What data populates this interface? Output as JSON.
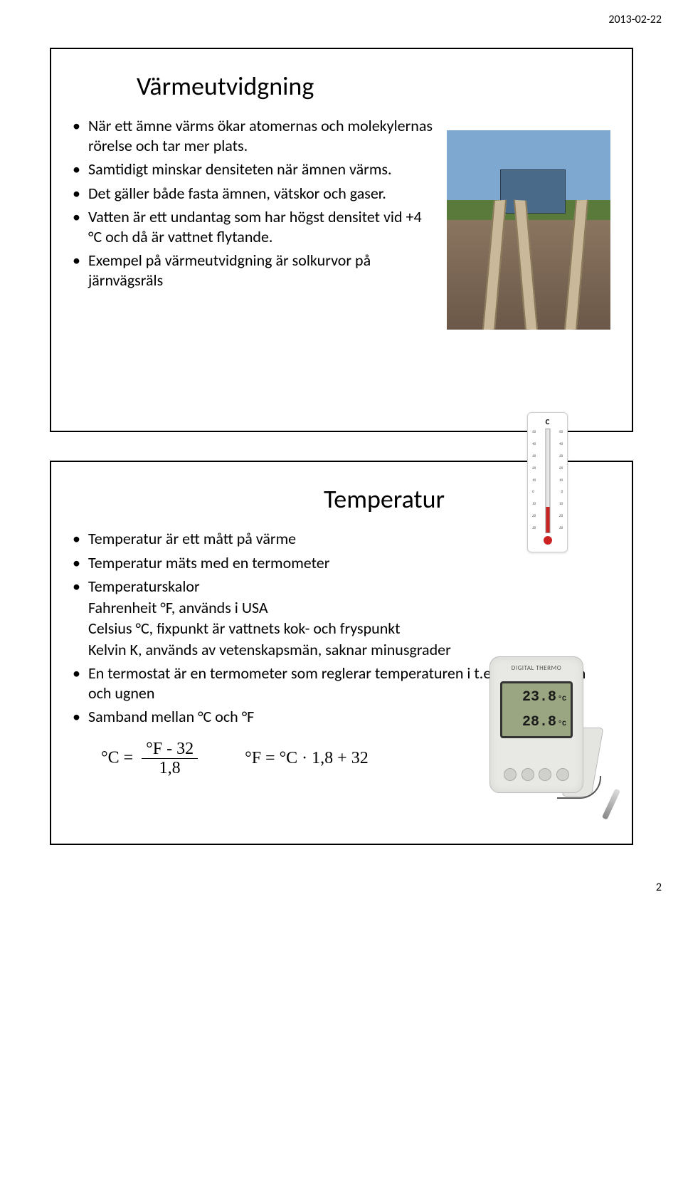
{
  "header": {
    "date": "2013-02-22"
  },
  "slide1": {
    "title": "Värmeutvidgning",
    "bullets": [
      "När ett ämne värms ökar atomernas och molekylernas rörelse och tar mer plats.",
      "Samtidigt minskar densiteten när ämnen värms.",
      "Det gäller både fasta ämnen, vätskor och gaser.",
      "Vatten är ett undantag som har högst densitet vid +4 °C och då är vattnet flytande.",
      "Exempel på värmeutvidgning är solkurvor på järnvägsräls"
    ]
  },
  "slide2": {
    "title": "Temperatur",
    "bullets": [
      {
        "text": "Temperatur är ett mått på värme"
      },
      {
        "text": "Temperatur mäts med en termometer"
      },
      {
        "text": "Temperaturskalor",
        "subs": [
          "Fahrenheit °F, används i USA",
          "Celsius °C, fixpunkt är vattnets kok- och fryspunkt",
          "Kelvin K, används av vetenskapsmän, saknar minusgrader"
        ]
      },
      {
        "text": "En termostat är en termometer som reglerar temperaturen i t.ex. frysen, kylen och ugnen"
      },
      {
        "text": "Samband mellan °C och °F"
      }
    ],
    "formula1_lhs": "°C",
    "formula1_num": "°F - 32",
    "formula1_den": "1,8",
    "formula2": "°F = °C · 1,8 + 32",
    "digital": {
      "label": "DIGITAL THERMO",
      "reading1": "23.8",
      "reading2": "28.8",
      "unit": "°C"
    }
  },
  "footer": {
    "page": "2"
  }
}
